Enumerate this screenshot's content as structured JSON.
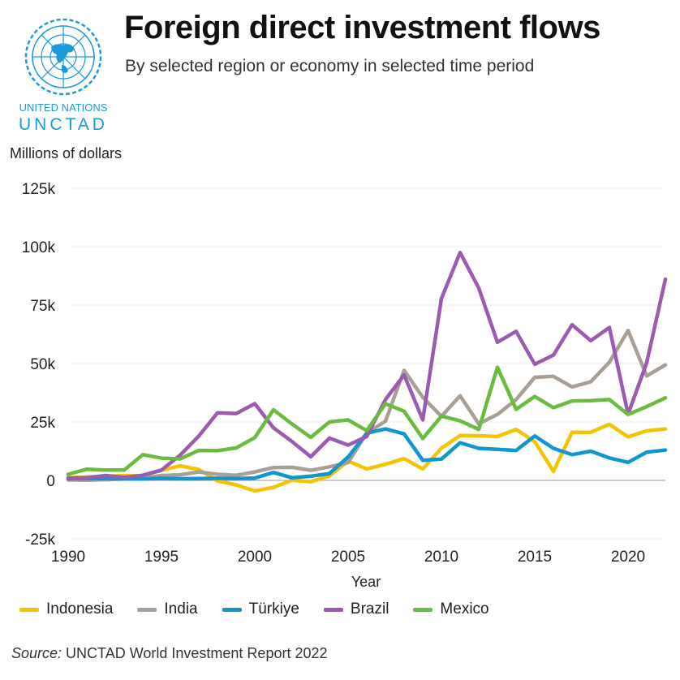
{
  "header": {
    "title": "Foreign direct investment flows",
    "subtitle": "By selected region or economy in selected time period",
    "logo_line1": "UNITED NATIONS",
    "logo_line2": "UNCTAD",
    "logo_color": "#1a9ad6"
  },
  "footer": {
    "source_label": "Source:",
    "source_text": " UNCTAD World Investment Report 2022"
  },
  "chart_data": {
    "type": "line",
    "title": "Foreign direct investment flows",
    "subtitle": "By selected region or economy in selected time period",
    "xlabel": "Year",
    "ylabel": "Millions of dollars",
    "xlim": [
      1990,
      2022
    ],
    "ylim": [
      -25000,
      125000
    ],
    "x_ticks": [
      1990,
      1995,
      2000,
      2005,
      2010,
      2015,
      2020
    ],
    "x_tick_labels": [
      "1990",
      "1995",
      "2000",
      "2005",
      "2010",
      "2015",
      "2020"
    ],
    "y_ticks": [
      -25000,
      0,
      25000,
      50000,
      75000,
      100000,
      125000
    ],
    "y_tick_labels": [
      "-25k",
      "0",
      "25k",
      "50k",
      "75k",
      "100k",
      "125k"
    ],
    "grid": true,
    "legend_position": "bottom",
    "x": [
      1990,
      1991,
      1992,
      1993,
      1994,
      1995,
      1996,
      1997,
      1998,
      1999,
      2000,
      2001,
      2002,
      2003,
      2004,
      2005,
      2006,
      2007,
      2008,
      2009,
      2010,
      2011,
      2012,
      2013,
      2014,
      2015,
      2016,
      2017,
      2018,
      2019,
      2020,
      2021,
      2022
    ],
    "series": [
      {
        "name": "Indonesia",
        "color": "#f5c400",
        "values": [
          1100,
          1500,
          1800,
          2000,
          2100,
          4300,
          6200,
          4700,
          -200,
          -1900,
          -4500,
          -3000,
          100,
          -600,
          1900,
          8300,
          4900,
          6900,
          9300,
          4900,
          13800,
          19200,
          19100,
          18800,
          21800,
          16600,
          3900,
          20600,
          20600,
          24000,
          18600,
          21200,
          22000
        ]
      },
      {
        "name": "India",
        "color": "#a8a096",
        "values": [
          200,
          100,
          300,
          600,
          1000,
          2100,
          2400,
          3600,
          2600,
          2200,
          3600,
          5500,
          5600,
          4300,
          5800,
          7600,
          20300,
          25300,
          47100,
          35600,
          27400,
          36200,
          24200,
          28200,
          34600,
          44100,
          44500,
          40000,
          42200,
          50600,
          64100,
          44700,
          49400
        ]
      },
      {
        "name": "Türkiye",
        "color": "#1196d0",
        "values": [
          700,
          800,
          800,
          600,
          600,
          900,
          700,
          800,
          900,
          800,
          1000,
          3400,
          1100,
          1800,
          2900,
          10000,
          20200,
          22000,
          19900,
          8600,
          9100,
          16100,
          13700,
          13300,
          12800,
          19000,
          13700,
          11000,
          12500,
          9600,
          7700,
          12100,
          13000
        ]
      },
      {
        "name": "Brazil",
        "color": "#9b5bb0",
        "values": [
          1000,
          1100,
          2100,
          1300,
          2200,
          4400,
          10800,
          19000,
          28900,
          28600,
          32800,
          22500,
          16600,
          10100,
          18100,
          15100,
          18800,
          34600,
          45100,
          25900,
          77800,
          97500,
          82300,
          59100,
          63800,
          49700,
          53600,
          66600,
          59800,
          65400,
          28300,
          50400,
          86100
        ]
      },
      {
        "name": "Mexico",
        "color": "#6abb3e",
        "values": [
          2600,
          4800,
          4400,
          4400,
          11000,
          9500,
          9200,
          12800,
          12700,
          13900,
          18300,
          30200,
          24100,
          18400,
          25000,
          25900,
          21300,
          32800,
          29600,
          17900,
          27500,
          25500,
          21800,
          48400,
          30400,
          35900,
          31100,
          34000,
          34100,
          34600,
          28200,
          31600,
          35300
        ]
      }
    ]
  }
}
